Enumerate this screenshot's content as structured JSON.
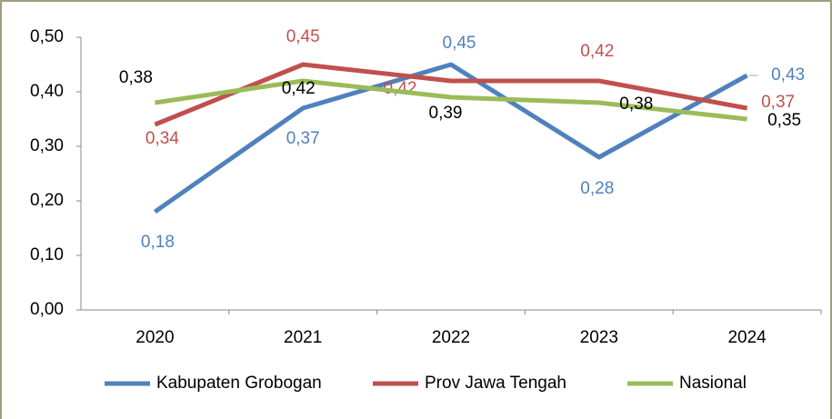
{
  "chart_data": {
    "type": "line",
    "categories": [
      "2020",
      "2021",
      "2022",
      "2023",
      "2024"
    ],
    "series": [
      {
        "name": "Kabupaten Grobogan",
        "color": "#4f81bd",
        "label_color": "#4f81bd",
        "values": [
          0.18,
          0.37,
          0.45,
          0.28,
          0.43
        ],
        "value_labels": [
          "0,18",
          "0,37",
          "0,45",
          "0,28",
          "0,43"
        ]
      },
      {
        "name": "Prov Jawa Tengah",
        "color": "#c0504d",
        "label_color": "#c0504d",
        "values": [
          0.34,
          0.45,
          0.42,
          0.42,
          0.37
        ],
        "value_labels": [
          "0,34",
          "0,45",
          "0,42",
          "0,42",
          "0,37"
        ]
      },
      {
        "name": "Nasional",
        "color": "#9bbb59",
        "label_color": "#000000",
        "values": [
          0.38,
          0.42,
          0.39,
          0.38,
          0.35
        ],
        "value_labels": [
          "0,38",
          "0,42",
          "0,39",
          "0,38",
          "0,35"
        ]
      }
    ],
    "ylim": [
      0,
      0.5
    ],
    "yticks": [
      {
        "value": 0,
        "label": "0,00"
      },
      {
        "value": 0.1,
        "label": "0,10"
      },
      {
        "value": 0.2,
        "label": "0,20"
      },
      {
        "value": 0.3,
        "label": "0,30"
      },
      {
        "value": 0.4,
        "label": "0,40"
      },
      {
        "value": 0.5,
        "label": "0,50"
      }
    ],
    "grid": false,
    "legend": "bottom"
  }
}
